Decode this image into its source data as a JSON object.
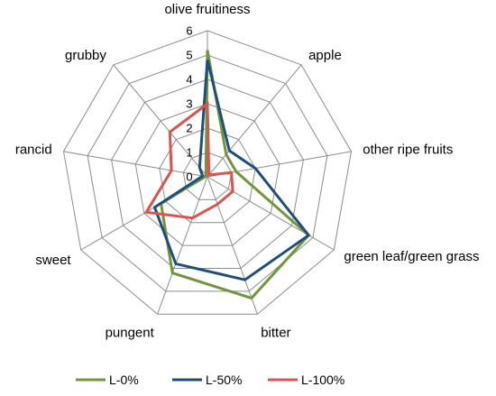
{
  "chart_data": {
    "type": "radar",
    "axes": [
      "olive fruitiness",
      "apple",
      "other ripe fruits",
      "green leaf/green grass",
      "bitter",
      "pungent",
      "sweet",
      "rancid",
      "grubby"
    ],
    "rlim": [
      0,
      6
    ],
    "ticks": [
      "0",
      "1",
      "2",
      "3",
      "4",
      "5",
      "6"
    ],
    "grid": true,
    "legend_position": "bottom",
    "series": [
      {
        "name": "L-0%",
        "color": "#70963c",
        "values": [
          5.2,
          1.2,
          1.2,
          4.8,
          5.3,
          4.2,
          2.2,
          0.1,
          0.1
        ]
      },
      {
        "name": "L-50%",
        "color": "#1f4e79",
        "values": [
          4.8,
          1.4,
          2.0,
          4.8,
          4.5,
          3.8,
          2.5,
          0.2,
          0.5
        ]
      },
      {
        "name": "L-100%",
        "color": "#d9534f",
        "values": [
          3.0,
          0.1,
          1.0,
          1.2,
          1.2,
          1.8,
          2.9,
          1.5,
          2.4
        ]
      }
    ]
  }
}
